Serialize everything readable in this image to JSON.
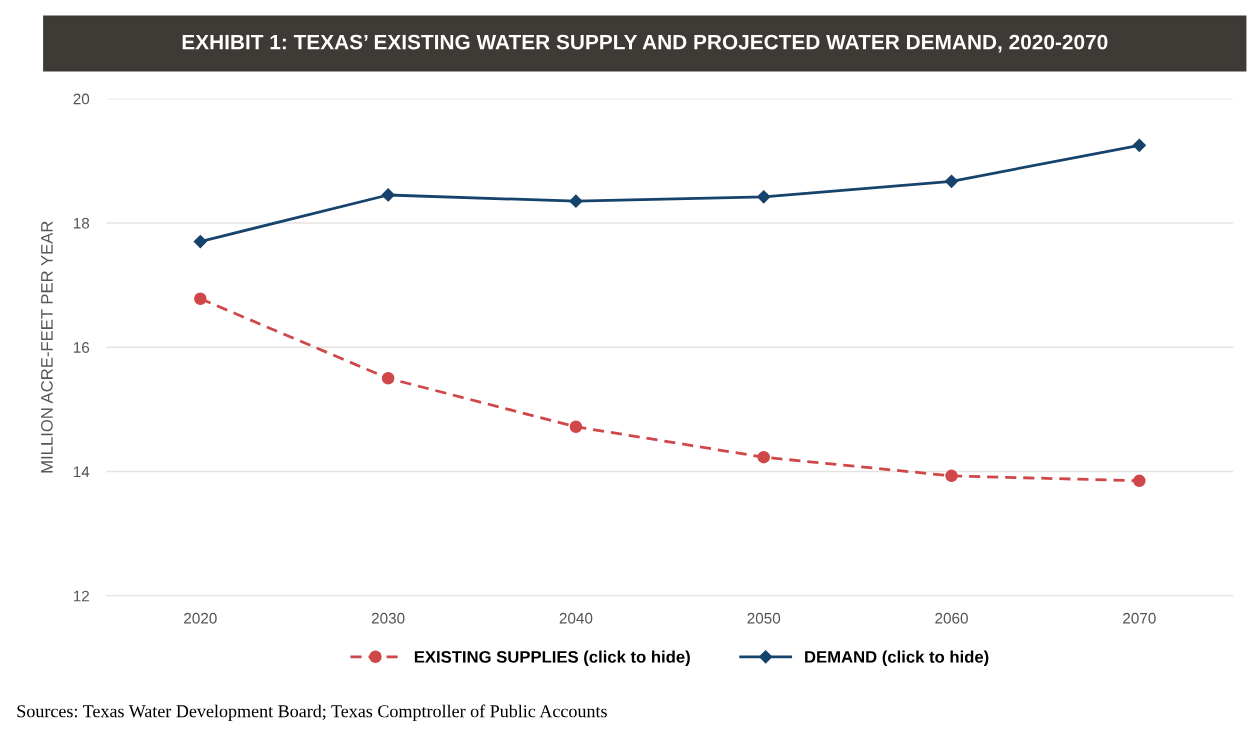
{
  "chart_data": {
    "type": "line",
    "title": "EXHIBIT 1: TEXAS’ EXISTING WATER SUPPLY AND PROJECTED WATER DEMAND, 2020-2070",
    "ylabel": "MILLION ACRE-FEET PER YEAR",
    "categories": [
      "2020",
      "2030",
      "2040",
      "2050",
      "2060",
      "2070"
    ],
    "series": [
      {
        "name": "EXISTING SUPPLIES (click to hide)",
        "color": "#d0474a",
        "marker": "circle",
        "line_style": "dashed",
        "values": [
          16.78,
          15.5,
          14.72,
          14.23,
          13.93,
          13.85
        ]
      },
      {
        "name": "DEMAND (click to hide)",
        "color": "#16436c",
        "marker": "diamond",
        "line_style": "solid",
        "values": [
          17.7,
          18.45,
          18.35,
          18.42,
          18.67,
          19.25
        ]
      }
    ],
    "ylim": [
      12,
      20
    ],
    "yticks": [
      12,
      14,
      16,
      18,
      20
    ],
    "grid": "y",
    "legend": "bottom",
    "annotations": [
      "Sources: Texas Water Development Board; Texas Comptroller of Public Accounts"
    ]
  }
}
